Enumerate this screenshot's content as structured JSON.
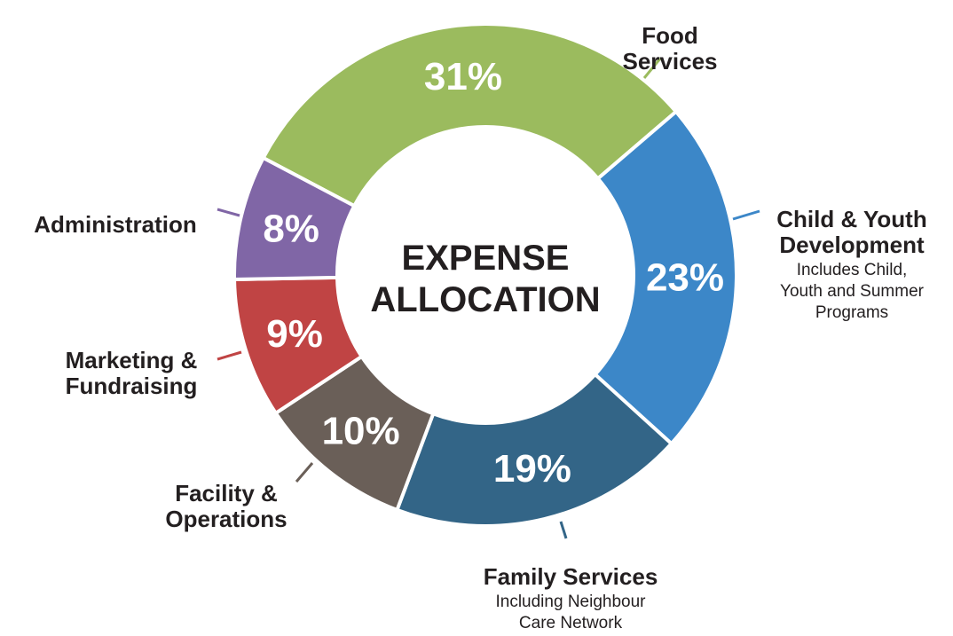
{
  "chart_data": {
    "type": "pie",
    "variant": "donut",
    "title": [
      "EXPENSE",
      "ALLOCATION"
    ],
    "slices": [
      {
        "name": "Food Services",
        "label_lines": [
          "Food",
          "Services"
        ],
        "sub_lines": [],
        "value": 31,
        "label": "31%",
        "color": "#9BBB5E"
      },
      {
        "name": "Child & Youth Development",
        "label_lines": [
          "Child & Youth",
          "Development"
        ],
        "sub_lines": [
          "Includes Child,",
          "Youth and Summer",
          "Programs"
        ],
        "value": 23,
        "label": "23%",
        "color": "#3C87C8"
      },
      {
        "name": "Family Services",
        "label_lines": [
          "Family Services"
        ],
        "sub_lines": [
          "Including Neighbour",
          "Care Network"
        ],
        "value": 19,
        "label": "19%",
        "color": "#336587"
      },
      {
        "name": "Facility & Operations",
        "label_lines": [
          "Facility &",
          "Operations"
        ],
        "sub_lines": [],
        "value": 10,
        "label": "10%",
        "color": "#6A5F58"
      },
      {
        "name": "Marketing & Fundraising",
        "label_lines": [
          "Marketing &",
          "Fundraising"
        ],
        "sub_lines": [],
        "value": 9,
        "label": "9%",
        "color": "#C04444"
      },
      {
        "name": "Administration",
        "label_lines": [
          "Administration"
        ],
        "sub_lines": [],
        "value": 8,
        "label": "8%",
        "color": "#8066A6"
      }
    ]
  }
}
